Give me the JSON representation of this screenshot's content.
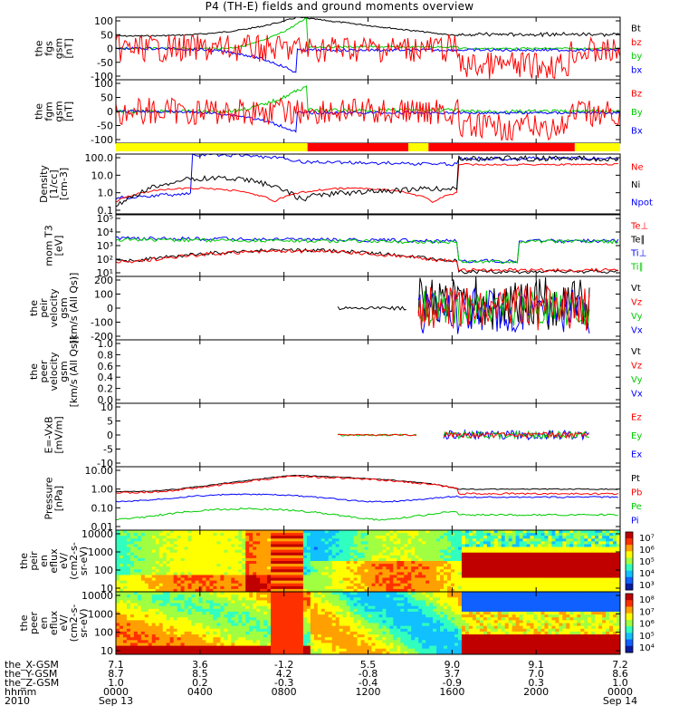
{
  "title": "P4 (TH-E) fields and ground moments overview",
  "time_ticks": [
    "0000",
    "0400",
    "0800",
    "1200",
    "1600",
    "2000",
    "0000"
  ],
  "date_labels": [
    "Sep 13",
    "",
    "",
    "",
    "",
    "",
    "Sep 14"
  ],
  "year": "2010",
  "hhmm_label": "hhmm",
  "ephemeris": [
    {
      "label": "the_X-GSM",
      "values": [
        "7.1",
        "3.6",
        "-1.2",
        "5.5",
        "9.0",
        "9.1",
        "7.2"
      ]
    },
    {
      "label": "the_Y-GSM",
      "values": [
        "8.7",
        "8.5",
        "4.2",
        "-0.8",
        "3.7",
        "7.0",
        "8.6"
      ]
    },
    {
      "label": "the_Z-GSM",
      "values": [
        "1.0",
        "0.2",
        "-0.3",
        "-0.4",
        "-0.9",
        "0.3",
        "1.0"
      ]
    }
  ],
  "chart_data": [
    {
      "type": "line",
      "ylabel": "the fgs gsm [nT]",
      "ylim": [
        -100,
        100
      ],
      "yticks": [
        "100",
        "50",
        "0",
        "-50",
        "-100"
      ],
      "legend": [
        {
          "name": "Bt",
          "color": "#000000"
        },
        {
          "name": "bz",
          "color": "#ff0000"
        },
        {
          "name": "by",
          "color": "#00cc00"
        },
        {
          "name": "bx",
          "color": "#0000ff"
        }
      ]
    },
    {
      "type": "line",
      "ylabel": "the fgm gsm [nT]",
      "ylim": [
        -120,
        120
      ],
      "yticks": [
        "100",
        "50",
        "0",
        "-50",
        "-100"
      ],
      "legend": [
        {
          "name": "Bz",
          "color": "#ff0000"
        },
        {
          "name": "By",
          "color": "#00cc00"
        },
        {
          "name": "Bx",
          "color": "#0000ff"
        }
      ]
    },
    {
      "type": "bar",
      "ylabel": "",
      "mode_bar": true,
      "segments": [
        {
          "from": 0.0,
          "to": 0.38,
          "color": "#ffff00"
        },
        {
          "from": 0.38,
          "to": 0.58,
          "color": "#ff0000"
        },
        {
          "from": 0.58,
          "to": 0.62,
          "color": "#ffff00"
        },
        {
          "from": 0.62,
          "to": 0.91,
          "color": "#ff0000"
        },
        {
          "from": 0.91,
          "to": 1.0,
          "color": "#ffff00"
        }
      ]
    },
    {
      "type": "line",
      "ylabel": "Density [1/cc] [cm-3]",
      "log": true,
      "ylim": [
        0.1,
        100
      ],
      "yticks": [
        "100.0",
        "10.0",
        "1.0",
        "0.1"
      ],
      "legend": [
        {
          "name": "Ne",
          "color": "#ff0000"
        },
        {
          "name": "Ni",
          "color": "#000000"
        },
        {
          "name": "Npot",
          "color": "#0000ff"
        }
      ]
    },
    {
      "type": "line",
      "ylabel": "mom T3 [eV]",
      "log": true,
      "ylim": [
        10,
        100000
      ],
      "yticks": [
        "10⁵",
        "10⁴",
        "10³",
        "10²",
        "10¹"
      ],
      "legend": [
        {
          "name": "Te⊥",
          "color": "#ff0000"
        },
        {
          "name": "Te∥",
          "color": "#000000"
        },
        {
          "name": "Ti⊥",
          "color": "#0000ff"
        },
        {
          "name": "Ti∥",
          "color": "#00cc00"
        }
      ]
    },
    {
      "type": "line",
      "ylabel": "the peir velocity gsm [km/s (All Qs)]",
      "ylim": [
        -200,
        200
      ],
      "yticks": [
        "200",
        "100",
        "0",
        "-100",
        "-200"
      ],
      "legend": [
        {
          "name": "Vt",
          "color": "#000000"
        },
        {
          "name": "Vz",
          "color": "#ff0000"
        },
        {
          "name": "Vy",
          "color": "#00cc00"
        },
        {
          "name": "Vx",
          "color": "#0000ff"
        }
      ]
    },
    {
      "type": "line",
      "ylabel": "the peer velocity gsm [km/s (All Qs)]",
      "ylim": [
        0,
        1
      ],
      "yticks": [
        "1.0",
        "0.8",
        "0.6",
        "0.4",
        "0.2",
        "0.0"
      ],
      "legend": [
        {
          "name": "Vt",
          "color": "#000000"
        },
        {
          "name": "Vz",
          "color": "#ff0000"
        },
        {
          "name": "Vy",
          "color": "#00cc00"
        },
        {
          "name": "Vx",
          "color": "#0000ff"
        }
      ]
    },
    {
      "type": "line",
      "ylabel": "E=-VxB [mV/m]",
      "ylim": [
        -10,
        10
      ],
      "yticks": [
        "10",
        "5",
        "0",
        "-5",
        "-10"
      ],
      "legend": [
        {
          "name": "Ez",
          "color": "#ff0000"
        },
        {
          "name": "Ey",
          "color": "#00cc00"
        },
        {
          "name": "Ex",
          "color": "#0000ff"
        }
      ]
    },
    {
      "type": "line",
      "ylabel": "Pressure [nPa]",
      "log": true,
      "ylim": [
        0.002,
        30
      ],
      "yticks": [
        "10.00",
        "1.00",
        "0.10",
        "0.01"
      ],
      "legend": [
        {
          "name": "Pt",
          "color": "#000000"
        },
        {
          "name": "Pb",
          "color": "#ff0000"
        },
        {
          "name": "Pe",
          "color": "#00cc00"
        },
        {
          "name": "Pi",
          "color": "#0000ff"
        }
      ]
    },
    {
      "type": "heatmap",
      "ylabel": "the peir en eflux eV/ (cm2-s-sr-eV)",
      "log": true,
      "yticks": [
        "10000",
        "1000",
        "100",
        "10"
      ],
      "colorbar_ticks": [
        "10⁷",
        "10⁶",
        "10⁵",
        "10⁴",
        "10³"
      ]
    },
    {
      "type": "heatmap",
      "ylabel": "the peer en eflux eV/ (cm2-s-sr-eV)",
      "log": true,
      "yticks": [
        "10000",
        "1000",
        "100",
        "10"
      ],
      "colorbar_ticks": [
        "10⁸",
        "10⁷",
        "10⁶",
        "10⁵",
        "10⁴"
      ]
    }
  ],
  "panel_labels": [
    [
      "the",
      "fgs",
      "gsm",
      "[nT]"
    ],
    [
      "the",
      "fgm",
      "gsm",
      "[nT]"
    ],
    [],
    [
      "Density",
      "[1/cc]",
      "[cm-3]"
    ],
    [
      "mom T3",
      "[eV]"
    ],
    [
      "the",
      "peir",
      "velocity",
      "gsm",
      "[km/s (All Qs)]"
    ],
    [
      "the",
      "peer",
      "velocity",
      "gsm",
      "[km/s (All Qs)]"
    ],
    [
      "E=-VxB",
      "[mV/m]"
    ],
    [
      "Pressure",
      "[nPa]"
    ],
    [
      "the",
      "peir",
      "en",
      "eflux",
      "eV/",
      "(cm2-s-",
      "sr-eV)"
    ],
    [
      "the",
      "peer",
      "en",
      "eflux",
      "eV/",
      "(cm2-s-",
      "sr-eV)"
    ]
  ]
}
